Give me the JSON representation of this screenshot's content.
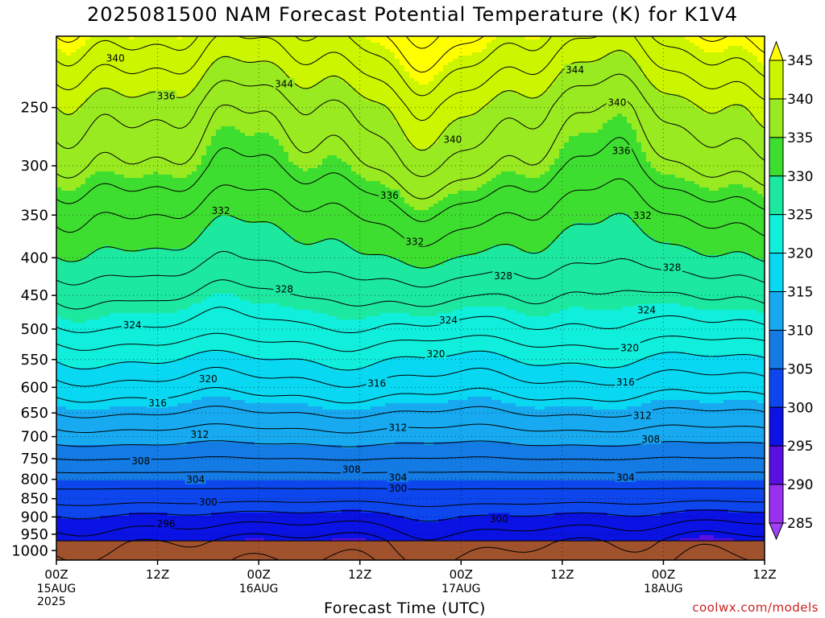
{
  "header": {
    "title": "2025081500 NAM Forecast Potential Temperature (K) for K1V4"
  },
  "footer": {
    "xlabel": "Forecast Time (UTC)",
    "year": "2025",
    "credit": "coolwx.com/models"
  },
  "chart_data": {
    "type": "heatmap",
    "title": "2025081500 NAM Forecast Potential Temperature (K) for K1V4",
    "xlabel": "Forecast Time (UTC)",
    "ylabel": "",
    "x_range_hours": [
      0,
      84
    ],
    "x_ticks": [
      {
        "hour": 0,
        "label": "00Z",
        "sub": "15AUG"
      },
      {
        "hour": 12,
        "label": "12Z",
        "sub": ""
      },
      {
        "hour": 24,
        "label": "00Z",
        "sub": "16AUG"
      },
      {
        "hour": 36,
        "label": "12Z",
        "sub": ""
      },
      {
        "hour": 48,
        "label": "00Z",
        "sub": "17AUG"
      },
      {
        "hour": 60,
        "label": "12Z",
        "sub": ""
      },
      {
        "hour": 72,
        "label": "00Z",
        "sub": "18AUG"
      },
      {
        "hour": 84,
        "label": "12Z",
        "sub": ""
      }
    ],
    "y_axis": "pressure (hPa), log scale, inverted",
    "ylim": [
      1030,
      200
    ],
    "y_ticks": [
      250,
      300,
      350,
      400,
      450,
      500,
      550,
      600,
      650,
      700,
      750,
      800,
      850,
      900,
      950,
      1000
    ],
    "grid": "dotted",
    "colorbar": {
      "labels": [
        345,
        340,
        335,
        330,
        325,
        320,
        315,
        310,
        305,
        300,
        295,
        290,
        285
      ],
      "bands": [
        {
          "from": 345,
          "color": "#ffff00"
        },
        {
          "from": 340,
          "color": "#ccf500"
        },
        {
          "from": 335,
          "color": "#99ea20"
        },
        {
          "from": 330,
          "color": "#3ede30"
        },
        {
          "from": 325,
          "color": "#1ce8a0"
        },
        {
          "from": 320,
          "color": "#10eedc"
        },
        {
          "from": 315,
          "color": "#08d8f2"
        },
        {
          "from": 310,
          "color": "#18aaf0"
        },
        {
          "from": 305,
          "color": "#147ae4"
        },
        {
          "from": 300,
          "color": "#0c46ec"
        },
        {
          "from": 295,
          "color": "#0a12e4"
        },
        {
          "from": 290,
          "color": "#5a10e0"
        },
        {
          "from": 285,
          "color": "#9a30f0"
        }
      ]
    },
    "ground_color": "#a0522d",
    "surface_pressure": 970,
    "contour_interval": 2,
    "profile_reference": [
      {
        "p": 970,
        "theta": 297
      },
      {
        "p": 900,
        "theta": 300
      },
      {
        "p": 850,
        "theta": 303
      },
      {
        "p": 800,
        "theta": 305
      },
      {
        "p": 750,
        "theta": 308
      },
      {
        "p": 700,
        "theta": 311
      },
      {
        "p": 650,
        "theta": 314
      },
      {
        "p": 600,
        "theta": 317
      },
      {
        "p": 550,
        "theta": 320
      },
      {
        "p": 500,
        "theta": 323.5
      },
      {
        "p": 450,
        "theta": 326
      },
      {
        "p": 400,
        "theta": 329
      },
      {
        "p": 350,
        "theta": 331.5
      },
      {
        "p": 300,
        "theta": 335
      },
      {
        "p": 250,
        "theta": 338
      },
      {
        "p": 200,
        "theta": 344
      }
    ],
    "contour_labels": [
      {
        "value": 340,
        "hour": 7.0,
        "p": 214
      },
      {
        "value": 344,
        "hour": 27.0,
        "p": 232
      },
      {
        "value": 336,
        "hour": 13.0,
        "p": 241
      },
      {
        "value": 344,
        "hour": 61.5,
        "p": 222
      },
      {
        "value": 340,
        "hour": 47.0,
        "p": 276
      },
      {
        "value": 340,
        "hour": 66.5,
        "p": 246
      },
      {
        "value": 336,
        "hour": 67.0,
        "p": 286
      },
      {
        "value": 336,
        "hour": 39.5,
        "p": 329
      },
      {
        "value": 332,
        "hour": 19.5,
        "p": 345
      },
      {
        "value": 332,
        "hour": 42.5,
        "p": 380
      },
      {
        "value": 332,
        "hour": 69.5,
        "p": 350
      },
      {
        "value": 328,
        "hour": 27.0,
        "p": 441
      },
      {
        "value": 328,
        "hour": 53.0,
        "p": 423
      },
      {
        "value": 328,
        "hour": 73.0,
        "p": 412
      },
      {
        "value": 324,
        "hour": 9.0,
        "p": 493
      },
      {
        "value": 324,
        "hour": 46.5,
        "p": 486
      },
      {
        "value": 324,
        "hour": 70.0,
        "p": 471
      },
      {
        "value": 320,
        "hour": 18.0,
        "p": 584
      },
      {
        "value": 320,
        "hour": 45.0,
        "p": 540
      },
      {
        "value": 320,
        "hour": 68.0,
        "p": 530
      },
      {
        "value": 316,
        "hour": 12.0,
        "p": 630
      },
      {
        "value": 316,
        "hour": 38.0,
        "p": 592
      },
      {
        "value": 316,
        "hour": 67.5,
        "p": 590
      },
      {
        "value": 312,
        "hour": 17.0,
        "p": 695
      },
      {
        "value": 312,
        "hour": 40.5,
        "p": 680
      },
      {
        "value": 312,
        "hour": 69.5,
        "p": 655
      },
      {
        "value": 308,
        "hour": 10.0,
        "p": 755
      },
      {
        "value": 308,
        "hour": 35.0,
        "p": 775
      },
      {
        "value": 308,
        "hour": 70.5,
        "p": 705
      },
      {
        "value": 304,
        "hour": 16.5,
        "p": 800
      },
      {
        "value": 304,
        "hour": 40.5,
        "p": 795
      },
      {
        "value": 304,
        "hour": 67.5,
        "p": 795
      },
      {
        "value": 300,
        "hour": 18.0,
        "p": 858
      },
      {
        "value": 300,
        "hour": 40.5,
        "p": 822
      },
      {
        "value": 300,
        "hour": 52.5,
        "p": 905
      },
      {
        "value": 296,
        "hour": 13.0,
        "p": 918
      }
    ]
  }
}
